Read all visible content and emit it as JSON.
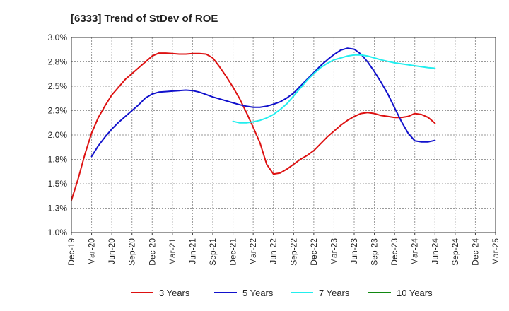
{
  "chart_data": {
    "type": "line",
    "title": "[6333]  Trend of StDev of ROE",
    "xlabel": "",
    "ylabel": "",
    "ylim": [
      1.0,
      3.0
    ],
    "y_ticks": [
      "1.0%",
      "1.3%",
      "1.5%",
      "1.8%",
      "2.0%",
      "2.3%",
      "2.5%",
      "2.8%",
      "3.0%"
    ],
    "y_tick_values": [
      1.0,
      1.25,
      1.5,
      1.75,
      2.0,
      2.25,
      2.5,
      2.75,
      3.0
    ],
    "x_ticks": [
      "Dec-19",
      "Mar-20",
      "Jun-20",
      "Sep-20",
      "Dec-20",
      "Mar-21",
      "Jun-21",
      "Sep-21",
      "Dec-21",
      "Mar-22",
      "Jun-22",
      "Sep-22",
      "Dec-22",
      "Mar-23",
      "Jun-23",
      "Sep-23",
      "Dec-23",
      "Mar-24",
      "Jun-24",
      "Sep-24",
      "Dec-24",
      "Mar-25"
    ],
    "grid": true,
    "legend_position": "bottom",
    "series": [
      {
        "name": "3 Years",
        "color": "#dd1111",
        "points": [
          [
            0,
            1.33
          ],
          [
            1,
            1.55
          ],
          [
            2,
            1.8
          ],
          [
            3,
            2.02
          ],
          [
            4,
            2.18
          ],
          [
            5,
            2.3
          ],
          [
            6,
            2.41
          ],
          [
            7,
            2.49
          ],
          [
            8,
            2.57
          ],
          [
            9,
            2.63
          ],
          [
            10,
            2.69
          ],
          [
            11,
            2.75
          ],
          [
            12,
            2.81
          ],
          [
            13,
            2.84
          ],
          [
            14,
            2.84
          ],
          [
            15,
            2.835
          ],
          [
            16,
            2.83
          ],
          [
            17,
            2.83
          ],
          [
            18,
            2.835
          ],
          [
            19,
            2.835
          ],
          [
            20,
            2.83
          ],
          [
            21,
            2.79
          ],
          [
            22,
            2.7
          ],
          [
            23,
            2.6
          ],
          [
            24,
            2.49
          ],
          [
            25,
            2.37
          ],
          [
            26,
            2.23
          ],
          [
            27,
            2.08
          ],
          [
            28,
            1.92
          ],
          [
            29,
            1.7
          ],
          [
            30,
            1.6
          ],
          [
            31,
            1.61
          ],
          [
            32,
            1.65
          ],
          [
            33,
            1.7
          ],
          [
            34,
            1.75
          ],
          [
            35,
            1.79
          ],
          [
            36,
            1.84
          ],
          [
            37,
            1.91
          ],
          [
            38,
            1.98
          ],
          [
            39,
            2.04
          ],
          [
            40,
            2.1
          ],
          [
            41,
            2.15
          ],
          [
            42,
            2.19
          ],
          [
            43,
            2.22
          ],
          [
            44,
            2.23
          ],
          [
            45,
            2.22
          ],
          [
            46,
            2.2
          ],
          [
            47,
            2.19
          ],
          [
            48,
            2.18
          ],
          [
            49,
            2.18
          ],
          [
            50,
            2.19
          ],
          [
            51,
            2.22
          ],
          [
            52,
            2.21
          ],
          [
            53,
            2.18
          ],
          [
            54,
            2.12
          ]
        ]
      },
      {
        "name": "5 Years",
        "color": "#1111cc",
        "points": [
          [
            3,
            1.78
          ],
          [
            4,
            1.89
          ],
          [
            5,
            1.98
          ],
          [
            6,
            2.06
          ],
          [
            7,
            2.13
          ],
          [
            8,
            2.19
          ],
          [
            9,
            2.25
          ],
          [
            10,
            2.31
          ],
          [
            11,
            2.38
          ],
          [
            12,
            2.42
          ],
          [
            13,
            2.44
          ],
          [
            14,
            2.445
          ],
          [
            15,
            2.45
          ],
          [
            16,
            2.455
          ],
          [
            17,
            2.46
          ],
          [
            18,
            2.455
          ],
          [
            19,
            2.44
          ],
          [
            20,
            2.415
          ],
          [
            21,
            2.39
          ],
          [
            22,
            2.37
          ],
          [
            23,
            2.35
          ],
          [
            24,
            2.33
          ],
          [
            25,
            2.31
          ],
          [
            26,
            2.295
          ],
          [
            27,
            2.285
          ],
          [
            28,
            2.285
          ],
          [
            29,
            2.295
          ],
          [
            30,
            2.315
          ],
          [
            31,
            2.34
          ],
          [
            32,
            2.38
          ],
          [
            33,
            2.43
          ],
          [
            34,
            2.5
          ],
          [
            35,
            2.57
          ],
          [
            36,
            2.64
          ],
          [
            37,
            2.71
          ],
          [
            38,
            2.77
          ],
          [
            39,
            2.825
          ],
          [
            40,
            2.87
          ],
          [
            41,
            2.89
          ],
          [
            42,
            2.88
          ],
          [
            43,
            2.83
          ],
          [
            44,
            2.75
          ],
          [
            45,
            2.65
          ],
          [
            46,
            2.54
          ],
          [
            47,
            2.42
          ],
          [
            48,
            2.28
          ],
          [
            49,
            2.14
          ],
          [
            50,
            2.02
          ],
          [
            51,
            1.94
          ],
          [
            52,
            1.93
          ],
          [
            53,
            1.93
          ],
          [
            54,
            1.945
          ]
        ]
      },
      {
        "name": "7 Years",
        "color": "#22eeee",
        "points": [
          [
            24,
            2.14
          ],
          [
            25,
            2.125
          ],
          [
            26,
            2.125
          ],
          [
            27,
            2.135
          ],
          [
            28,
            2.15
          ],
          [
            29,
            2.175
          ],
          [
            30,
            2.21
          ],
          [
            31,
            2.26
          ],
          [
            32,
            2.32
          ],
          [
            33,
            2.4
          ],
          [
            34,
            2.48
          ],
          [
            35,
            2.56
          ],
          [
            36,
            2.63
          ],
          [
            37,
            2.69
          ],
          [
            38,
            2.735
          ],
          [
            39,
            2.77
          ],
          [
            40,
            2.79
          ],
          [
            41,
            2.81
          ],
          [
            42,
            2.82
          ],
          [
            43,
            2.82
          ],
          [
            44,
            2.81
          ],
          [
            45,
            2.79
          ],
          [
            46,
            2.77
          ],
          [
            47,
            2.755
          ],
          [
            48,
            2.74
          ],
          [
            49,
            2.73
          ],
          [
            50,
            2.72
          ],
          [
            51,
            2.71
          ],
          [
            52,
            2.7
          ],
          [
            53,
            2.69
          ],
          [
            54,
            2.685
          ]
        ]
      },
      {
        "name": "10 Years",
        "color": "#118811",
        "points": []
      }
    ]
  }
}
